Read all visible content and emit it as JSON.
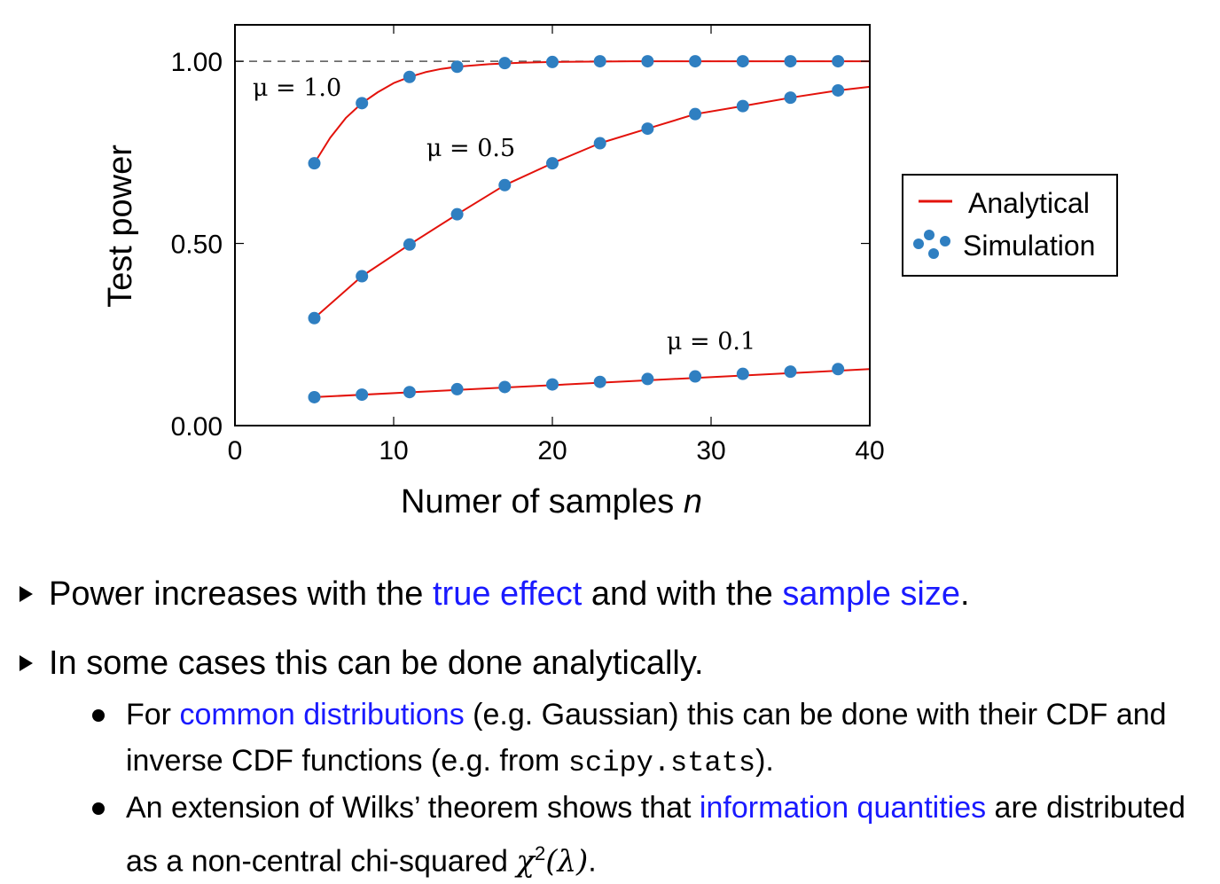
{
  "chart_data": {
    "type": "line",
    "xlabel": "Numer of samples",
    "xlabel_var": "n",
    "ylabel": "Test power",
    "xlim": [
      0,
      40
    ],
    "ylim": [
      0.0,
      1.1
    ],
    "x_ticks": [
      0,
      10,
      20,
      30,
      40
    ],
    "y_ticks": [
      0.0,
      0.5,
      1.0
    ],
    "x_tick_labels": [
      "0",
      "10",
      "20",
      "30",
      "40"
    ],
    "y_tick_labels": [
      "0.00",
      "0.50",
      "1.00"
    ],
    "reference_line": {
      "y": 1.0,
      "style": "dashed"
    },
    "legend": {
      "position": "right-outside",
      "entries": [
        "Analytical",
        "Simulation"
      ]
    },
    "colors": {
      "analytical": "#e3120b",
      "simulation": "#2f7fc1"
    },
    "sim_x": [
      5,
      8,
      11,
      14,
      17,
      20,
      23,
      26,
      29,
      32,
      35,
      38
    ],
    "series": [
      {
        "label": "μ = 1.0",
        "analytical_x": [
          5,
          6,
          7,
          8,
          9,
          10,
          11,
          12,
          13,
          14,
          16,
          18,
          20,
          25,
          30,
          35,
          40
        ],
        "analytical_y": [
          0.72,
          0.79,
          0.845,
          0.885,
          0.915,
          0.94,
          0.957,
          0.97,
          0.979,
          0.985,
          0.992,
          0.996,
          0.998,
          1.0,
          1.0,
          1.0,
          1.0
        ],
        "simulation_y": [
          0.72,
          0.885,
          0.957,
          0.985,
          0.995,
          0.998,
          1.0,
          1.0,
          1.0,
          1.0,
          1.0,
          1.0
        ]
      },
      {
        "label": "μ = 0.5",
        "analytical_x": [
          5,
          8,
          11,
          14,
          17,
          20,
          23,
          26,
          29,
          32,
          35,
          38,
          40
        ],
        "analytical_y": [
          0.295,
          0.41,
          0.497,
          0.58,
          0.66,
          0.72,
          0.775,
          0.815,
          0.855,
          0.877,
          0.9,
          0.92,
          0.93
        ],
        "simulation_y": [
          0.295,
          0.41,
          0.497,
          0.58,
          0.66,
          0.72,
          0.775,
          0.815,
          0.855,
          0.877,
          0.9,
          0.92
        ]
      },
      {
        "label": "μ = 0.1",
        "analytical_x": [
          5,
          40
        ],
        "analytical_y": [
          0.078,
          0.155
        ],
        "simulation_y": [
          0.078,
          0.085,
          0.092,
          0.1,
          0.106,
          0.113,
          0.12,
          0.128,
          0.135,
          0.142,
          0.148,
          0.155
        ]
      }
    ]
  },
  "bullets": {
    "b1": {
      "pre": "Power increases with the ",
      "hl1": "true effect",
      "mid": " and with the ",
      "hl2": "sample size",
      "post": "."
    },
    "b2": {
      "text": "In some cases this can be done analytically."
    },
    "b2a": {
      "pre": "For ",
      "hl": "common distributions",
      "post1": " (e.g. Gaussian) this can be done with their CDF and inverse CDF functions (e.g. from ",
      "code": "scipy.stats",
      "post2": ")."
    },
    "b2b": {
      "pre": "An extension of Wilks’ theorem shows that ",
      "hl": "information quantities",
      "post": " are distributed as a non-central chi-squared ",
      "math_chi": "χ",
      "math_sup": "2",
      "math_arg": "(λ)",
      "end": "."
    }
  }
}
